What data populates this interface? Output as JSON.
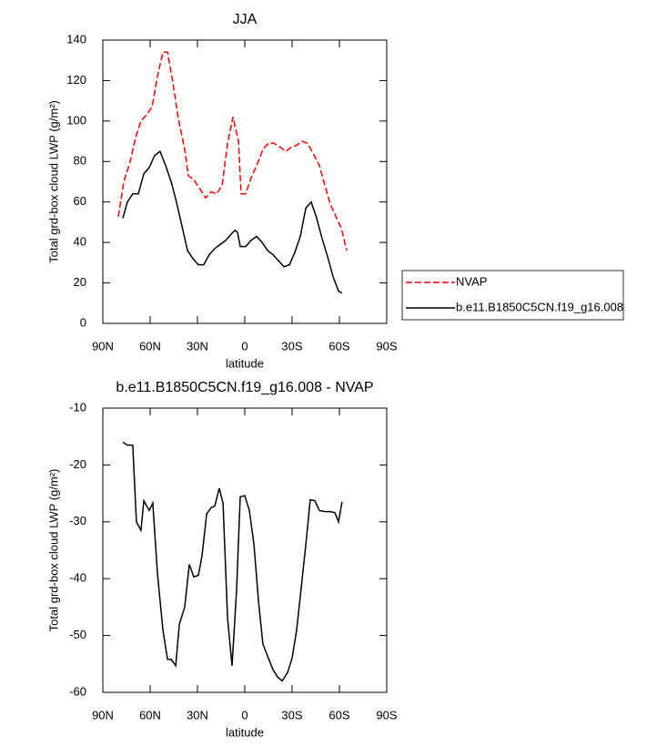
{
  "chart_data": [
    {
      "type": "line",
      "title": "JJA",
      "xlabel": "latitude",
      "ylabel": "Total grd-box cloud LWP (g/m²)",
      "xlim": [
        90,
        -90
      ],
      "xticks": [
        {
          "value": 90,
          "label": "90N"
        },
        {
          "value": 60,
          "label": "60N"
        },
        {
          "value": 30,
          "label": "30N"
        },
        0,
        {
          "value": -30,
          "label": "30S"
        },
        {
          "value": -60,
          "label": "60S"
        },
        {
          "value": -90,
          "label": "90S"
        }
      ],
      "ylim": [
        0,
        140
      ],
      "yticks": [
        0,
        20,
        40,
        60,
        80,
        100,
        120,
        140
      ],
      "legend": "right",
      "series": [
        {
          "name": "NVAP",
          "color": "#ff0000",
          "dash": true,
          "x": [
            80.2,
            76.7,
            72.7,
            69.2,
            65.8,
            62.3,
            58.8,
            55.4,
            51.9,
            49.0,
            45.6,
            42.1,
            38.1,
            35.8,
            32.3,
            28.8,
            24.8,
            21.3,
            17.9,
            14.4,
            10.9,
            7.5,
            4.0,
            2.3,
            -0.6,
            -4.0,
            -8.1,
            -11.5,
            -15.0,
            -18.5,
            -22.5,
            -26.0,
            -29.4,
            -32.9,
            -36.3,
            -39.8,
            -43.3,
            -47.3,
            -50.8,
            -54.2,
            -57.7,
            -61.2,
            -64.6
          ],
          "values": [
            52.7,
            70,
            80,
            92,
            100,
            103,
            107,
            122,
            134,
            134,
            119,
            101,
            86,
            73,
            71,
            67,
            62,
            65,
            64,
            68,
            89,
            102,
            90,
            64,
            64,
            72,
            79,
            86,
            89,
            89,
            87,
            85,
            87,
            88,
            90,
            89,
            84,
            78,
            68,
            59,
            53,
            47,
            36
          ]
        },
        {
          "name": "b.e11.B1850C5CN.f19_g16.008",
          "color": "#000000",
          "dash": false,
          "x": [
            77.3,
            74.4,
            71.0,
            67.5,
            64.0,
            60.6,
            57.1,
            53.7,
            50.2,
            46.7,
            43.3,
            39.8,
            36.3,
            32.9,
            29.4,
            26.0,
            22.5,
            19.0,
            15.6,
            12.1,
            8.7,
            6.3,
            4.6,
            2.9,
            -0.6,
            -4.0,
            -7.5,
            -11.0,
            -14.4,
            -17.9,
            -21.3,
            -24.8,
            -28.3,
            -31.7,
            -35.2,
            -38.7,
            -42.1,
            -45.6,
            -49.0,
            -52.5,
            -56.0,
            -59.4,
            -61.7
          ],
          "values": [
            52,
            60,
            64,
            64,
            74,
            77,
            83,
            85,
            78,
            70,
            60,
            48,
            36,
            32,
            29,
            29,
            34,
            37,
            39,
            41,
            44,
            46,
            45,
            38,
            38,
            41,
            43,
            40,
            36,
            34,
            31,
            28,
            29,
            35,
            43,
            57,
            60,
            52,
            42,
            33,
            23,
            16,
            15
          ]
        }
      ]
    },
    {
      "type": "line",
      "title": "b.e11.B1850C5CN.f19_g16.008 - NVAP",
      "xlabel": "latitude",
      "ylabel": "Total grd-box cloud LWP (g/m²)",
      "xlim": [
        90,
        -90
      ],
      "xticks": [
        {
          "value": 90,
          "label": "90N"
        },
        {
          "value": 60,
          "label": "60N"
        },
        {
          "value": 30,
          "label": "30N"
        },
        0,
        {
          "value": -30,
          "label": "30S"
        },
        {
          "value": -60,
          "label": "60S"
        },
        {
          "value": -90,
          "label": "90S"
        }
      ],
      "ylim": [
        -60,
        -10
      ],
      "yticks": [
        -60,
        -50,
        -40,
        -30,
        -20,
        -10
      ],
      "series": [
        {
          "color": "#000000",
          "dash": false,
          "x": [
            77.3,
            74.4,
            71.0,
            68.7,
            65.8,
            64.0,
            60.6,
            58.3,
            55.4,
            51.9,
            49.0,
            46.7,
            43.8,
            41.5,
            38.1,
            35.2,
            32.3,
            29.4,
            27.1,
            24.2,
            21.3,
            19.0,
            16.2,
            13.8,
            10.9,
            8.1,
            5.2,
            2.9,
            0.0,
            -2.9,
            -5.8,
            -8.7,
            -11.5,
            -15.0,
            -17.9,
            -20.8,
            -23.7,
            -27.1,
            -30.0,
            -32.9,
            -35.8,
            -38.7,
            -41.5,
            -44.4,
            -47.3,
            -50.8,
            -54.2,
            -57.1,
            -59.4,
            -61.7
          ],
          "values": [
            -16,
            -16.5,
            -16.5,
            -30,
            -31.5,
            -26.3,
            -28,
            -26.7,
            -39,
            -49,
            -54.2,
            -54.2,
            -55.3,
            -48,
            -45,
            -37.5,
            -39.7,
            -39.4,
            -36,
            -28.6,
            -27.5,
            -27.2,
            -24.1,
            -26.7,
            -47,
            -55.3,
            -42,
            -25.6,
            -25.4,
            -28,
            -34,
            -44,
            -51.5,
            -54,
            -56,
            -57.3,
            -58,
            -56.5,
            -54,
            -49,
            -41.5,
            -34,
            -26.1,
            -26.3,
            -28,
            -28.2,
            -28.2,
            -28.4,
            -30,
            -26.5
          ]
        }
      ]
    }
  ]
}
